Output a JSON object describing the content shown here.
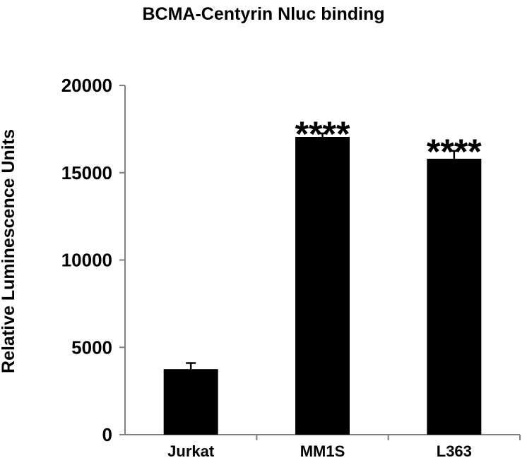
{
  "chart_data": {
    "type": "bar",
    "title": "BCMA-Centyrin Nluc binding",
    "xlabel": "",
    "ylabel": "Relative Luminescence Units",
    "categories": [
      "Jurkat",
      "MM1S",
      "L363"
    ],
    "values": [
      3750,
      17050,
      15800
    ],
    "errors": [
      350,
      200,
      450
    ],
    "annotations": [
      "",
      "****",
      "****"
    ],
    "ylim": [
      0,
      20000
    ],
    "yticks": [
      0,
      5000,
      10000,
      15000,
      20000
    ],
    "ytick_labels": [
      "0",
      "5000",
      "10000",
      "15000",
      "20000"
    ],
    "grid": false,
    "legend": "none",
    "bar_color": "#000000",
    "axis_color": "#808080"
  }
}
